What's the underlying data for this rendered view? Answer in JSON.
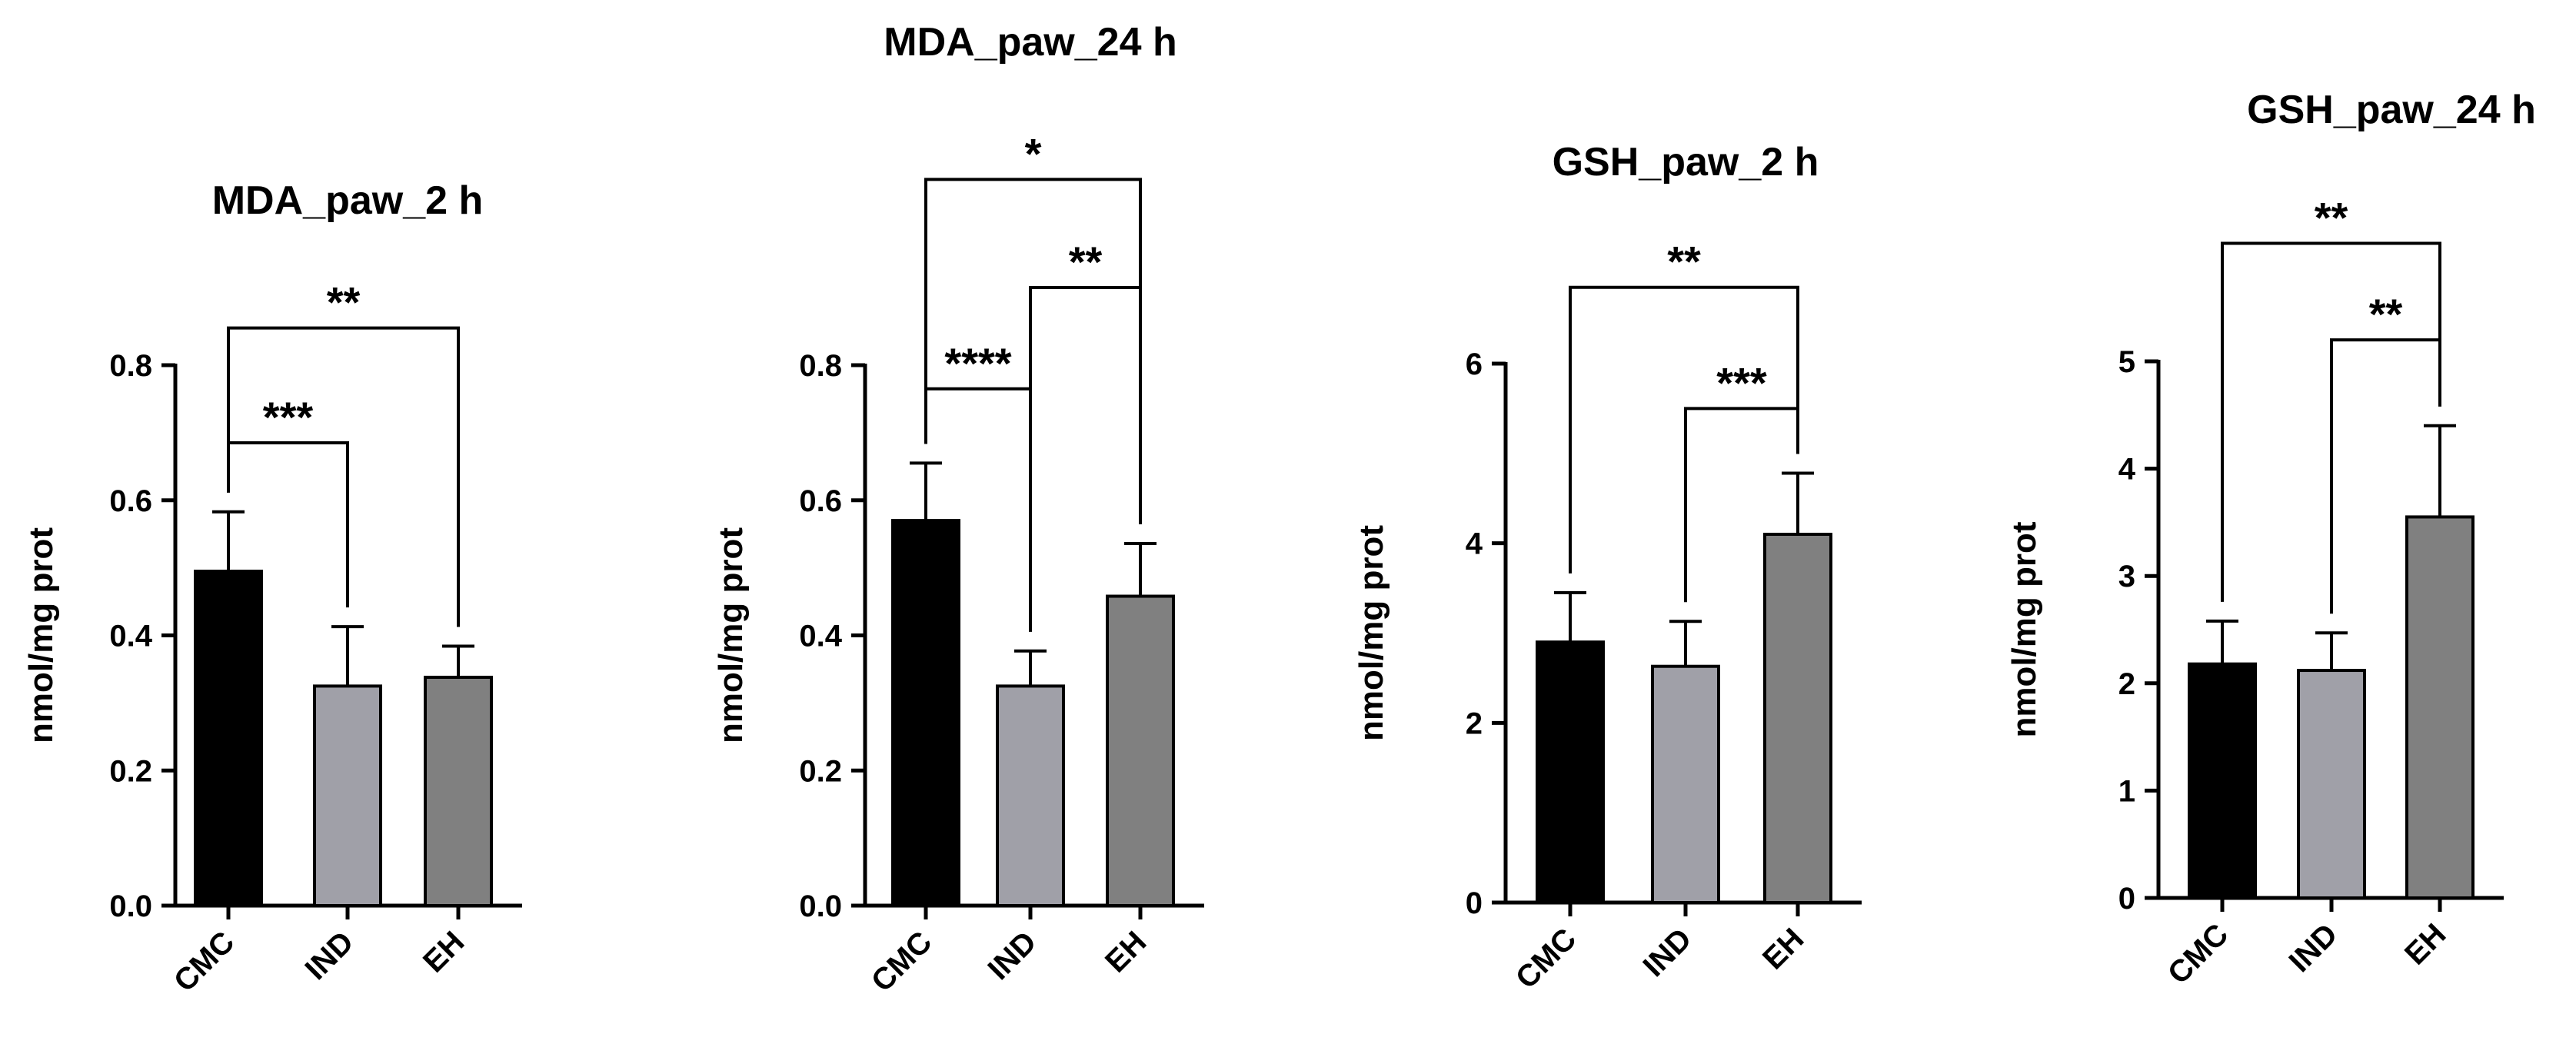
{
  "colors": {
    "CMC": "#000000",
    "IND": "#a0a0a8",
    "EH": "#808080"
  },
  "chart_data": [
    {
      "type": "bar",
      "title": "MDA_paw_2 h",
      "xlabel": "",
      "ylabel": "nmol/mg prot",
      "categories": [
        "CMC",
        "IND",
        "EH"
      ],
      "values": [
        0.495,
        0.325,
        0.338
      ],
      "errors": [
        0.088,
        0.088,
        0.046
      ],
      "ylim": [
        0,
        0.8
      ],
      "yticks": [
        "0.0",
        "0.2",
        "0.4",
        "0.6",
        "0.8"
      ],
      "comparisons": [
        {
          "from": 0,
          "to": 1,
          "label": "***",
          "level": 0.685
        },
        {
          "from": 0,
          "to": 2,
          "label": "**",
          "level": 0.855
        }
      ]
    },
    {
      "type": "bar",
      "title": "MDA_paw_24 h",
      "xlabel": "",
      "ylabel": "nmol/mg prot",
      "categories": [
        "CMC",
        "IND",
        "EH"
      ],
      "values": [
        0.57,
        0.325,
        0.458
      ],
      "errors": [
        0.085,
        0.052,
        0.078
      ],
      "ylim": [
        0,
        0.8
      ],
      "yticks": [
        "0.0",
        "0.2",
        "0.4",
        "0.6",
        "0.8"
      ],
      "comparisons": [
        {
          "from": 0,
          "to": 1,
          "label": "****",
          "level": 0.765
        },
        {
          "from": 1,
          "to": 2,
          "label": "**",
          "level": 0.915
        },
        {
          "from": 0,
          "to": 2,
          "label": "*",
          "level": 1.075
        }
      ]
    },
    {
      "type": "bar",
      "title": "GSH_paw_2 h",
      "xlabel": "",
      "ylabel": "nmol/mg prot",
      "categories": [
        "CMC",
        "IND",
        "EH"
      ],
      "values": [
        2.9,
        2.63,
        4.1
      ],
      "errors": [
        0.55,
        0.5,
        0.68
      ],
      "ylim": [
        0,
        6
      ],
      "yticks": [
        "0",
        "2",
        "4",
        "6"
      ],
      "comparisons": [
        {
          "from": 1,
          "to": 2,
          "label": "***",
          "level": 5.5
        },
        {
          "from": 0,
          "to": 2,
          "label": "**",
          "level": 6.85
        }
      ]
    },
    {
      "type": "bar",
      "title": "GSH_paw_24 h",
      "xlabel": "",
      "ylabel": "nmol/mg prot",
      "categories": [
        "CMC",
        "IND",
        "EH"
      ],
      "values": [
        2.18,
        2.12,
        3.55
      ],
      "errors": [
        0.4,
        0.35,
        0.85
      ],
      "ylim": [
        0,
        5
      ],
      "yticks": [
        "0",
        "1",
        "2",
        "3",
        "4",
        "5"
      ],
      "comparisons": [
        {
          "from": 1,
          "to": 2,
          "label": "**",
          "level": 5.2
        },
        {
          "from": 0,
          "to": 2,
          "label": "**",
          "level": 6.1
        }
      ]
    }
  ]
}
